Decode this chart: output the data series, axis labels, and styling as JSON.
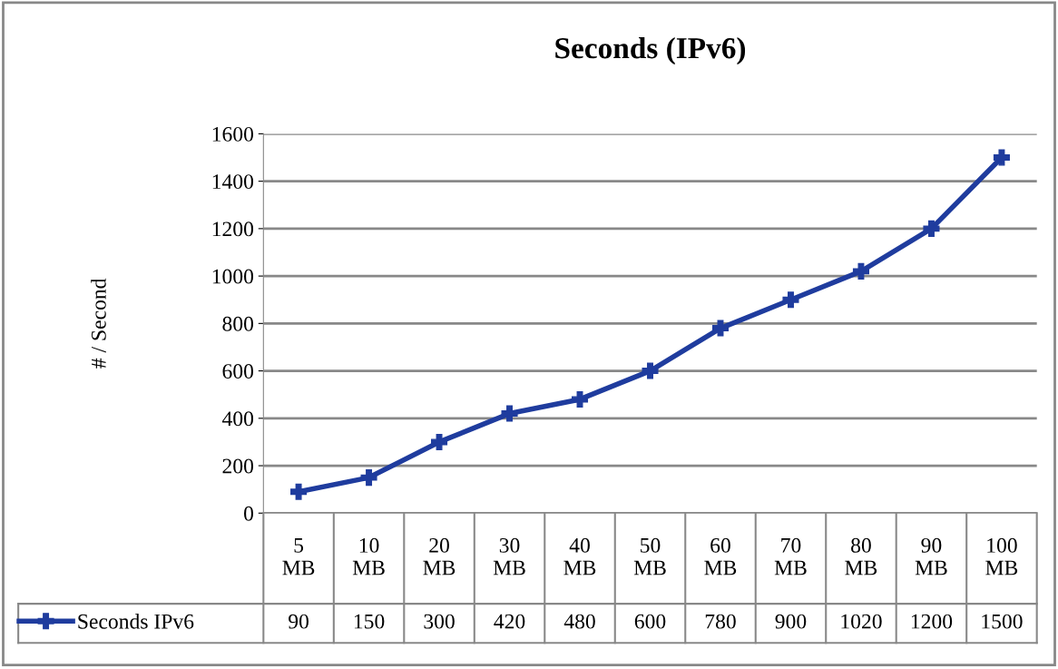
{
  "chart_data": {
    "type": "line",
    "title": "Seconds (IPv6)",
    "ylabel": "# / Second",
    "categories": [
      "5 MB",
      "10 MB",
      "20 MB",
      "30 MB",
      "40 MB",
      "50 MB",
      "60 MB",
      "70 MB",
      "80 MB",
      "90 MB",
      "100 MB"
    ],
    "series": [
      {
        "name": "Seconds IPv6",
        "color": "#1f3c9e",
        "values": [
          90,
          150,
          300,
          420,
          480,
          600,
          780,
          900,
          1020,
          1200,
          1500
        ]
      }
    ],
    "ylim": [
      0,
      1600
    ],
    "yticks": [
      0,
      200,
      400,
      600,
      800,
      1000,
      1200,
      1400,
      1600
    ],
    "grid": "y",
    "legend": "bottom",
    "marker": "cross",
    "line_style": "solid",
    "data_labels": true
  }
}
